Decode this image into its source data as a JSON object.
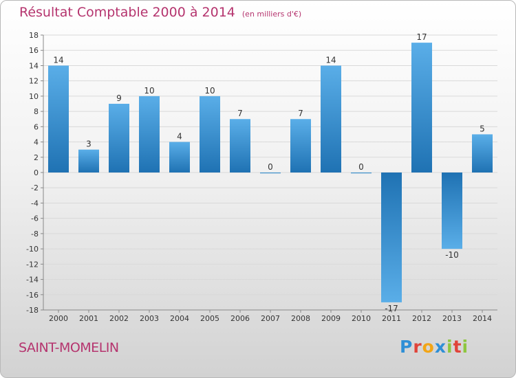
{
  "header": {
    "title": "Résultat Comptable 2000 à 2014",
    "subtitle": "(en milliers d'€)"
  },
  "footer": {
    "place": "SAINT-MOMELIN",
    "logo_text": "Proxiti"
  },
  "colors": {
    "bar_light": "#5aaee8",
    "bar_dark": "#1f72b3",
    "title": "#b5346e",
    "grid": "#d9d9d9",
    "axis": "#888888"
  },
  "chart_data": {
    "type": "bar",
    "title": "Résultat Comptable 2000 à 2014",
    "subtitle": "(en milliers d'€)",
    "categories": [
      "2000",
      "2001",
      "2002",
      "2003",
      "2004",
      "2005",
      "2006",
      "2007",
      "2008",
      "2009",
      "2010",
      "2011",
      "2012",
      "2013",
      "2014"
    ],
    "values": [
      14,
      3,
      9,
      10,
      4,
      10,
      7,
      0,
      7,
      14,
      0,
      -17,
      17,
      -10,
      5
    ],
    "ylim": [
      -18,
      18
    ],
    "yticks": [
      18,
      16,
      14,
      12,
      10,
      8,
      6,
      4,
      2,
      0,
      -2,
      -4,
      -6,
      -8,
      -10,
      -12,
      -14,
      -16,
      -18
    ],
    "grid": true,
    "xlabel": "",
    "ylabel": ""
  }
}
